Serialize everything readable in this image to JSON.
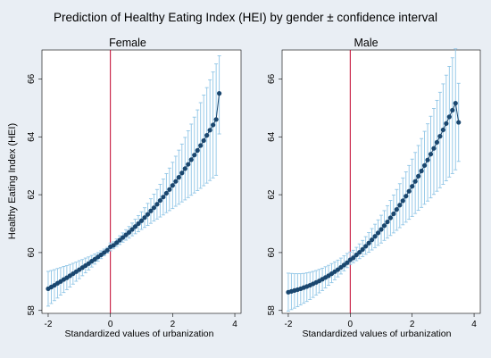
{
  "figure": {
    "title": "Prediction of Healthy Eating Index (HEI) by gender ± confidence interval",
    "background": "#e9eef4",
    "panel_background": "#ffffff"
  },
  "colors": {
    "marker": "#1a476f",
    "line": "#1a476f",
    "ci": "#8fc5e6",
    "ref_line": "#c1002a",
    "header_band": "#e9eef4"
  },
  "chart_data": [
    {
      "type": "line",
      "title": "Female",
      "xlabel": "Standardized values of urbanization",
      "ylabel": "Healthy Eating Index (HEI)",
      "xlim": [
        -2.2,
        4.2
      ],
      "ylim": [
        57.9,
        67.0
      ],
      "xticks": [
        -2,
        0,
        2,
        4
      ],
      "yticks": [
        58,
        60,
        62,
        64,
        66
      ],
      "reference_line_x": 0,
      "x": [
        -2.0,
        -1.9,
        -1.8,
        -1.7,
        -1.6,
        -1.5,
        -1.4,
        -1.3,
        -1.2,
        -1.1,
        -1.0,
        -0.9,
        -0.8,
        -0.7,
        -0.6,
        -0.5,
        -0.4,
        -0.3,
        -0.2,
        -0.1,
        0.0,
        0.1,
        0.2,
        0.3,
        0.4,
        0.5,
        0.6,
        0.7,
        0.8,
        0.9,
        1.0,
        1.1,
        1.2,
        1.3,
        1.4,
        1.5,
        1.6,
        1.7,
        1.8,
        1.9,
        2.0,
        2.1,
        2.2,
        2.3,
        2.4,
        2.5,
        2.6,
        2.7,
        2.8,
        2.9,
        3.0,
        3.1,
        3.2,
        3.3,
        3.4,
        3.5
      ],
      "series": [
        {
          "values": [
            58.75,
            58.81,
            58.87,
            58.94,
            59.0,
            59.07,
            59.13,
            59.2,
            59.27,
            59.34,
            59.41,
            59.48,
            59.55,
            59.62,
            59.7,
            59.77,
            59.85,
            59.92,
            60.0,
            60.08,
            60.2,
            60.25,
            60.34,
            60.43,
            60.52,
            60.61,
            60.7,
            60.8,
            60.9,
            61.0,
            61.1,
            61.21,
            61.32,
            61.44,
            61.55,
            61.67,
            61.8,
            61.92,
            62.05,
            62.18,
            62.32,
            62.46,
            62.6,
            62.75,
            62.9,
            63.05,
            63.21,
            63.37,
            63.53,
            63.7,
            63.87,
            64.05,
            64.23,
            64.41,
            64.6,
            65.5
          ],
          "ci_low": [
            58.15,
            58.24,
            58.34,
            58.43,
            58.53,
            58.62,
            58.72,
            58.81,
            58.91,
            59.01,
            59.1,
            59.2,
            59.3,
            59.4,
            59.5,
            59.6,
            59.7,
            59.79,
            59.89,
            59.98,
            60.06,
            60.13,
            60.21,
            60.28,
            60.36,
            60.43,
            60.5,
            60.58,
            60.65,
            60.72,
            60.8,
            60.87,
            60.94,
            61.01,
            61.09,
            61.16,
            61.23,
            61.3,
            61.38,
            61.45,
            61.52,
            61.6,
            61.67,
            61.75,
            61.82,
            61.9,
            61.98,
            62.06,
            62.14,
            62.22,
            62.31,
            62.4,
            62.49,
            62.58,
            62.67,
            64.1
          ],
          "ci_high": [
            59.35,
            59.38,
            59.41,
            59.45,
            59.48,
            59.52,
            59.55,
            59.59,
            59.63,
            59.67,
            59.72,
            59.76,
            59.81,
            59.85,
            59.9,
            59.95,
            60.0,
            60.06,
            60.12,
            60.18,
            60.33,
            60.37,
            60.47,
            60.58,
            60.68,
            60.79,
            60.9,
            61.02,
            61.15,
            61.28,
            61.41,
            61.55,
            61.7,
            61.86,
            62.02,
            62.18,
            62.36,
            62.54,
            62.73,
            62.92,
            63.12,
            63.33,
            63.54,
            63.75,
            63.98,
            64.21,
            64.44,
            64.68,
            64.93,
            65.18,
            65.44,
            65.7,
            65.97,
            66.24,
            66.52,
            66.8
          ]
        }
      ]
    },
    {
      "type": "line",
      "title": "Male",
      "xlabel": "Standardized values of urbanization",
      "ylabel": "",
      "xlim": [
        -2.2,
        4.2
      ],
      "ylim": [
        57.9,
        67.0
      ],
      "xticks": [
        -2,
        0,
        2,
        4
      ],
      "yticks": [
        58,
        60,
        62,
        64,
        66
      ],
      "reference_line_x": 0,
      "x": [
        -2.0,
        -1.9,
        -1.8,
        -1.7,
        -1.6,
        -1.5,
        -1.4,
        -1.3,
        -1.2,
        -1.1,
        -1.0,
        -0.9,
        -0.8,
        -0.7,
        -0.6,
        -0.5,
        -0.4,
        -0.3,
        -0.2,
        -0.1,
        0.0,
        0.1,
        0.2,
        0.3,
        0.4,
        0.5,
        0.6,
        0.7,
        0.8,
        0.9,
        1.0,
        1.1,
        1.2,
        1.3,
        1.4,
        1.5,
        1.6,
        1.7,
        1.8,
        1.9,
        2.0,
        2.1,
        2.2,
        2.3,
        2.4,
        2.5,
        2.6,
        2.7,
        2.8,
        2.9,
        3.0,
        3.1,
        3.2,
        3.3,
        3.4,
        3.5
      ],
      "series": [
        {
          "values": [
            58.63,
            58.66,
            58.69,
            58.72,
            58.75,
            58.79,
            58.83,
            58.87,
            58.92,
            58.97,
            59.02,
            59.08,
            59.14,
            59.2,
            59.27,
            59.34,
            59.41,
            59.49,
            59.57,
            59.65,
            59.75,
            59.82,
            59.92,
            60.01,
            60.11,
            60.22,
            60.33,
            60.44,
            60.56,
            60.68,
            60.8,
            60.93,
            61.06,
            61.2,
            61.34,
            61.49,
            61.64,
            61.79,
            61.95,
            62.12,
            62.29,
            62.46,
            62.64,
            62.82,
            63.01,
            63.2,
            63.4,
            63.6,
            63.81,
            64.02,
            64.24,
            64.46,
            64.69,
            64.92,
            65.16,
            64.5
          ],
          "ci_low": [
            57.98,
            58.03,
            58.08,
            58.13,
            58.19,
            58.25,
            58.31,
            58.38,
            58.45,
            58.53,
            58.61,
            58.69,
            58.78,
            58.87,
            58.96,
            59.06,
            59.16,
            59.26,
            59.37,
            59.48,
            59.59,
            59.65,
            59.72,
            59.79,
            59.86,
            59.94,
            60.01,
            60.09,
            60.17,
            60.25,
            60.33,
            60.42,
            60.5,
            60.59,
            60.68,
            60.77,
            60.86,
            60.96,
            61.05,
            61.15,
            61.25,
            61.35,
            61.46,
            61.56,
            61.67,
            61.78,
            61.89,
            62.01,
            62.12,
            62.24,
            62.36,
            62.48,
            62.61,
            62.73,
            62.86,
            63.15
          ],
          "ci_high": [
            59.29,
            59.28,
            59.27,
            59.27,
            59.27,
            59.28,
            59.3,
            59.32,
            59.35,
            59.38,
            59.42,
            59.46,
            59.51,
            59.56,
            59.62,
            59.68,
            59.74,
            59.81,
            59.89,
            59.97,
            60.02,
            60.08,
            60.18,
            60.3,
            60.42,
            60.55,
            60.69,
            60.83,
            60.98,
            61.13,
            61.29,
            61.45,
            61.62,
            61.8,
            61.99,
            62.18,
            62.38,
            62.58,
            62.79,
            63.01,
            63.23,
            63.46,
            63.7,
            63.94,
            64.19,
            64.45,
            64.71,
            64.98,
            65.26,
            65.54,
            65.83,
            66.13,
            66.43,
            66.73,
            67.04,
            65.85
          ]
        }
      ]
    }
  ]
}
